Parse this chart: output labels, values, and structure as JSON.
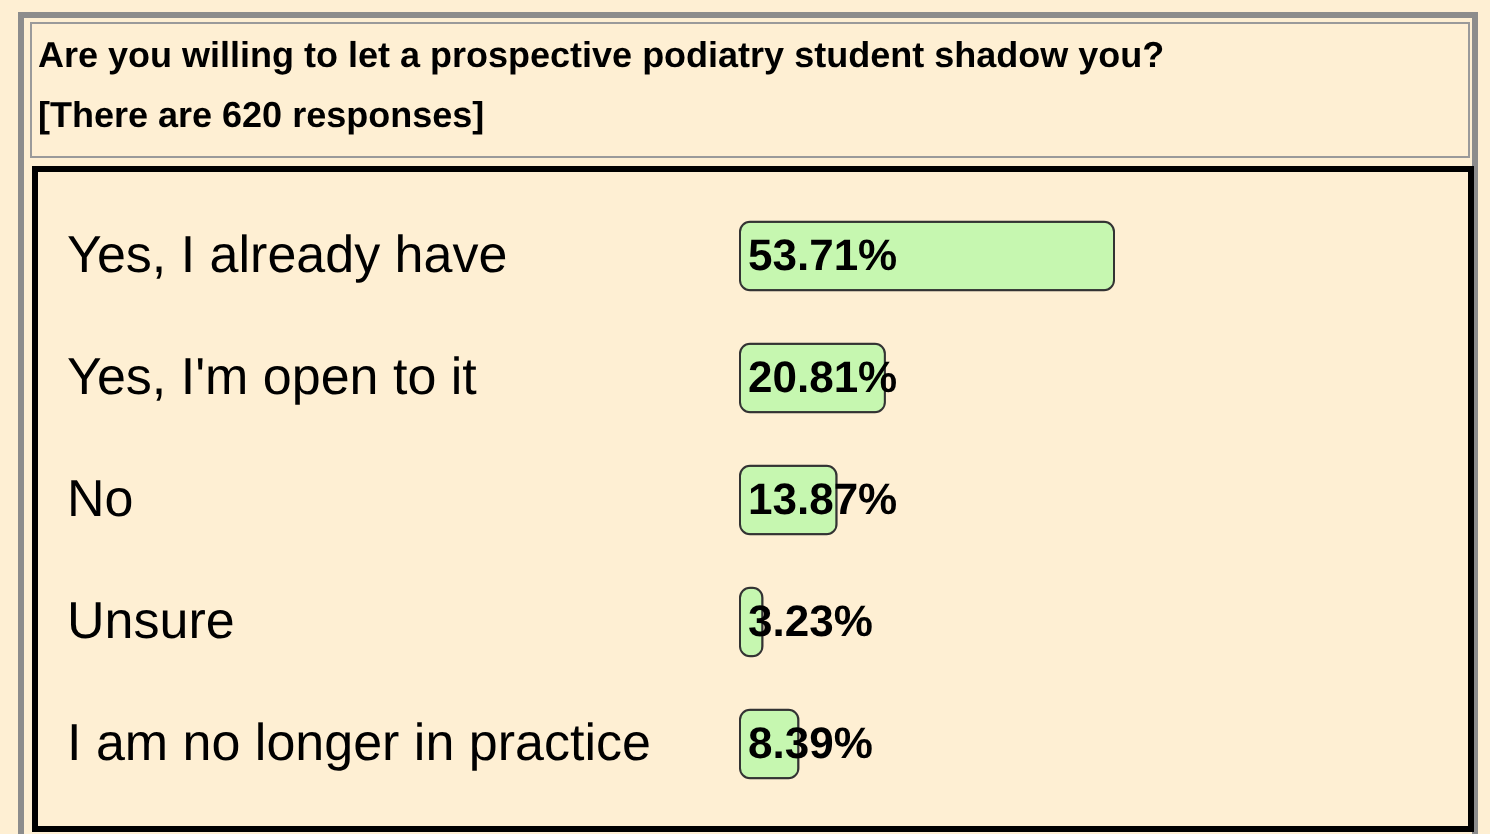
{
  "chart_data": {
    "type": "bar",
    "orientation": "horizontal",
    "title": "Are you willing to let a prospective podiatry student shadow you?",
    "subtitle": "[There are 620 responses]",
    "categories": [
      "Yes, I already have",
      "Yes, I'm open to it",
      "No",
      "Unsure",
      "I am no longer in practice"
    ],
    "values": [
      53.71,
      20.81,
      13.87,
      3.23,
      8.39
    ],
    "value_labels": [
      "53.71%",
      "20.81%",
      "13.87%",
      "3.23%",
      "8.39%"
    ],
    "color": "#c6f7b0"
  }
}
